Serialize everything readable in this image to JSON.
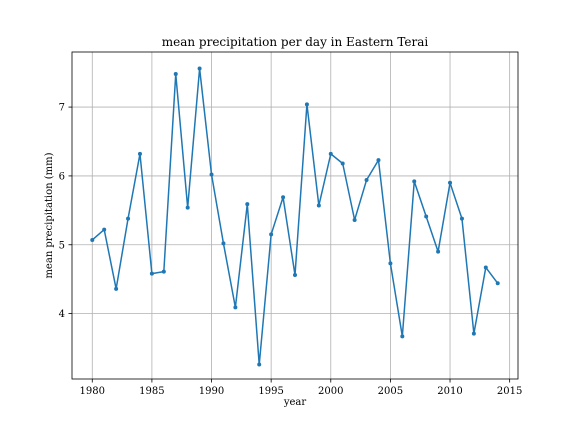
{
  "chart_data": {
    "type": "line",
    "title": "mean precipitation per day in Eastern Terai",
    "xlabel": "year",
    "ylabel": "mean precipitation (mm)",
    "xlim": [
      1978.3,
      2015.7
    ],
    "ylim": [
      3.05,
      7.8
    ],
    "xticks": [
      1980,
      1985,
      1990,
      1995,
      2000,
      2005,
      2010,
      2015
    ],
    "yticks": [
      4,
      5,
      6,
      7
    ],
    "grid": true,
    "series": [
      {
        "color": "#1f77b4",
        "marker": "circle",
        "x": [
          1980,
          1981,
          1982,
          1983,
          1984,
          1985,
          1986,
          1987,
          1988,
          1989,
          1990,
          1991,
          1992,
          1993,
          1994,
          1995,
          1996,
          1997,
          1998,
          1999,
          2000,
          2001,
          2002,
          2003,
          2004,
          2005,
          2006,
          2007,
          2008,
          2009,
          2010,
          2011,
          2012,
          2013,
          2014
        ],
        "y": [
          5.07,
          5.22,
          4.36,
          5.38,
          6.32,
          4.58,
          4.61,
          7.48,
          5.54,
          7.56,
          6.02,
          5.02,
          4.09,
          5.59,
          3.26,
          5.15,
          5.69,
          4.56,
          7.04,
          5.57,
          6.32,
          6.18,
          5.36,
          5.94,
          6.23,
          4.73,
          3.67,
          5.92,
          5.41,
          4.9,
          5.9,
          5.38,
          3.71,
          4.67,
          4.44
        ]
      }
    ]
  }
}
